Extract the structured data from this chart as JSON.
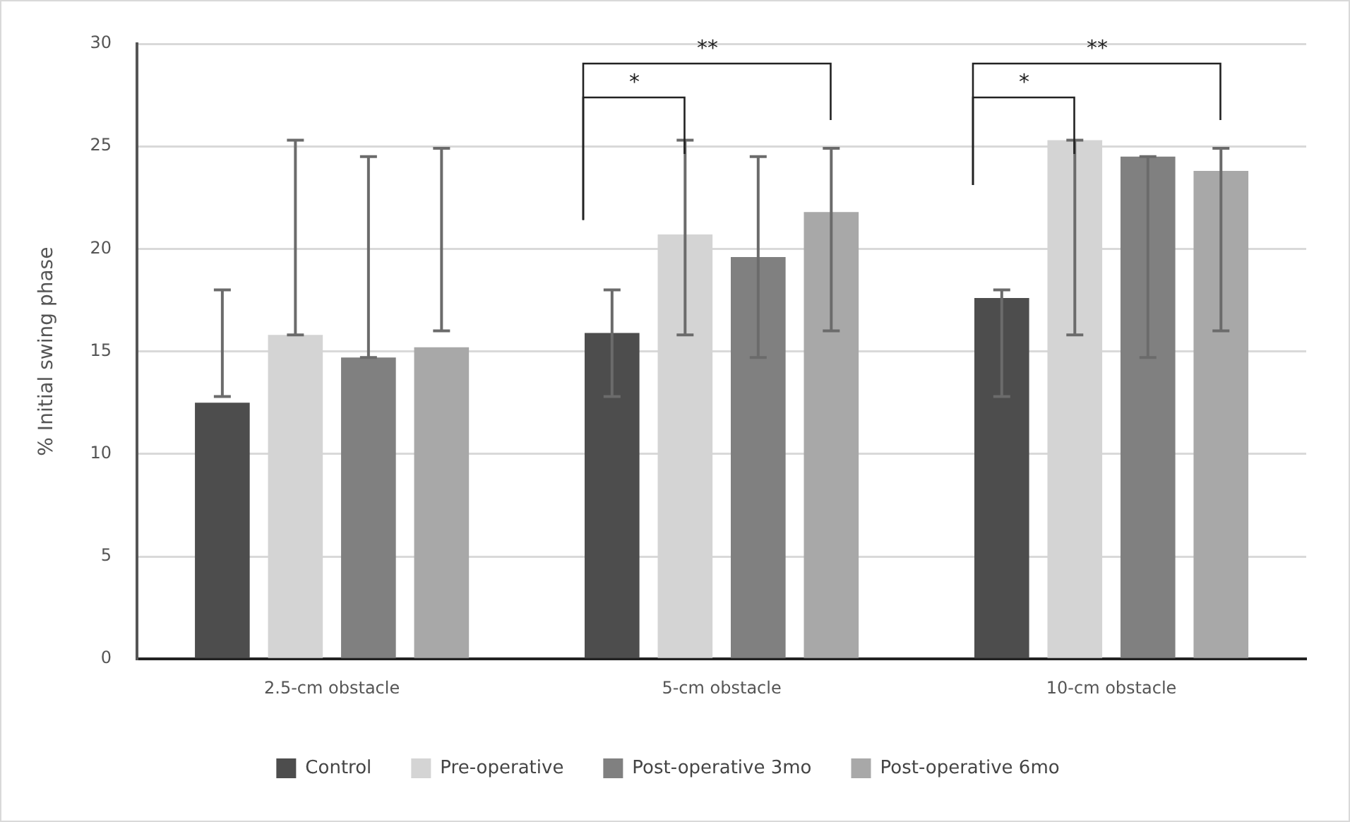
{
  "chart_data": {
    "type": "bar",
    "ylabel": "% Initial swing phase",
    "categories": [
      "2.5-cm obstacle",
      "5-cm obstacle",
      "10-cm obstacle"
    ],
    "series": [
      {
        "name": "Control",
        "color": "#4d4d4d",
        "values": [
          12.5,
          15.9,
          17.6
        ],
        "errors": [
          [
            12.8,
            18.0
          ],
          [
            12.8,
            18.0
          ],
          [
            12.8,
            18.0
          ]
        ]
      },
      {
        "name": "Pre-operative",
        "color": "#d4d4d4",
        "values": [
          15.8,
          20.7,
          25.3
        ],
        "errors": [
          [
            15.8,
            25.3
          ],
          [
            15.8,
            25.3
          ],
          [
            15.8,
            25.3
          ]
        ]
      },
      {
        "name": "Post-operative 3mo",
        "color": "#808080",
        "values": [
          14.7,
          19.6,
          24.5
        ],
        "errors": [
          [
            14.7,
            24.5
          ],
          [
            14.7,
            24.5
          ],
          [
            14.7,
            24.5
          ]
        ]
      },
      {
        "name": "Post-operative 6mo",
        "color": "#a8a8a8",
        "values": [
          15.2,
          21.8,
          23.8
        ],
        "errors": [
          [
            16.0,
            24.9
          ],
          [
            16.0,
            24.9
          ],
          [
            16.0,
            24.9
          ]
        ]
      }
    ],
    "ylim": [
      0,
      30
    ],
    "yticks": [
      0,
      5,
      10,
      15,
      20,
      25,
      30
    ],
    "grid": "y",
    "legend": "bottom",
    "annotations": [
      "*",
      "**",
      "*",
      "**"
    ]
  }
}
